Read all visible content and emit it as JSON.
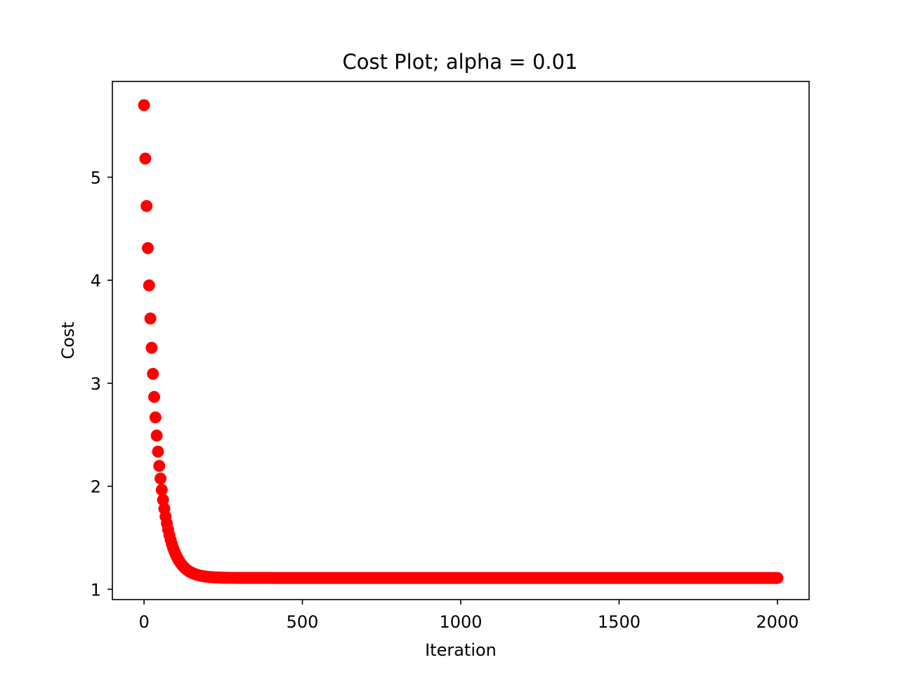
{
  "chart_data": {
    "type": "scatter",
    "title": "Cost Plot; alpha = 0.01",
    "xlabel": "Iteration",
    "ylabel": "Cost",
    "xlim": [
      -100,
      2100
    ],
    "ylim": [
      0.9,
      5.93
    ],
    "xticks": [
      0,
      500,
      1000,
      1500,
      2000
    ],
    "yticks": [
      1,
      2,
      3,
      4,
      5
    ],
    "grid": false,
    "legend": "none",
    "marker_color": "#ff0000",
    "series": [
      {
        "model": "exponential-decay",
        "y0": 5.7,
        "floor": 1.11,
        "rate": 0.03,
        "x_start": 0,
        "x_end": 2000,
        "x_step": 4
      }
    ]
  }
}
